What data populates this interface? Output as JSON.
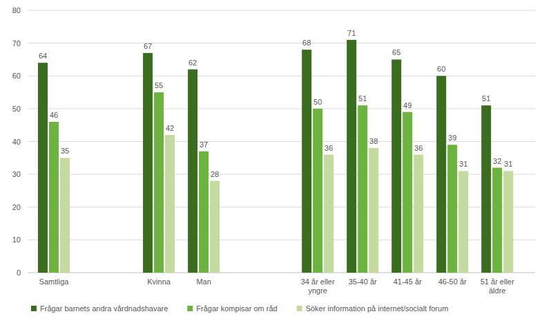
{
  "chart_data": {
    "type": "bar",
    "categories": [
      "Samtliga",
      "Kvinna",
      "Man",
      "34  år eller yngre",
      "35-40 år",
      "41-45 år",
      "46-50 år",
      "51 år eller äldre"
    ],
    "series": [
      {
        "name": "Frågar barnets andra vårdnadshavare",
        "color": "#3b6d1f",
        "values": [
          64,
          67,
          62,
          68,
          71,
          65,
          60,
          51
        ]
      },
      {
        "name": "Frågar kompisar om råd",
        "color": "#6cb33f",
        "values": [
          46,
          55,
          37,
          50,
          51,
          49,
          39,
          32
        ]
      },
      {
        "name": "Söker information på internet/socialt forum",
        "color": "#c4dba0",
        "values": [
          35,
          42,
          28,
          36,
          38,
          36,
          31,
          31
        ]
      }
    ],
    "ylim": [
      0,
      80
    ],
    "yticks": [
      0,
      10,
      20,
      30,
      40,
      50,
      60,
      70,
      80
    ],
    "grid": true,
    "data_labels": true,
    "legend": "bottom"
  }
}
